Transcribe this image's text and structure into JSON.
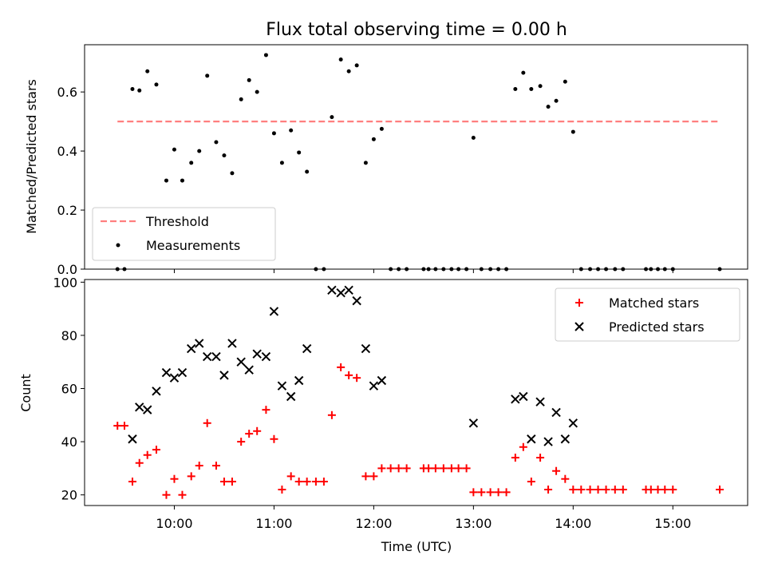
{
  "chart_data": [
    {
      "type": "scatter",
      "title": "Flux total observing time = 0.00 h",
      "xlabel": "",
      "ylabel": "Matched/Predicted stars",
      "xlim": [
        9.1,
        15.75
      ],
      "ylim": [
        0,
        0.76
      ],
      "yticks": [
        0.0,
        0.2,
        0.4,
        0.6
      ],
      "ytick_labels": [
        "0.0",
        "0.2",
        "0.4",
        "0.6"
      ],
      "legend_position": "lower-left",
      "threshold": {
        "name": "Threshold",
        "color": "#ff7f7f",
        "value": 0.5,
        "x_range": [
          9.43,
          15.47
        ]
      },
      "series": [
        {
          "name": "Measurements",
          "color": "#000000",
          "marker": "dot",
          "x": [
            9.43,
            9.5,
            9.58,
            9.65,
            9.73,
            9.82,
            9.92,
            10.0,
            10.08,
            10.17,
            10.25,
            10.33,
            10.42,
            10.5,
            10.58,
            10.67,
            10.75,
            10.83,
            10.92,
            11.0,
            11.08,
            11.17,
            11.25,
            11.33,
            11.42,
            11.5,
            11.58,
            11.67,
            11.75,
            11.83,
            11.92,
            12.0,
            12.08,
            12.17,
            12.25,
            12.33,
            12.5,
            12.55,
            12.62,
            12.7,
            12.78,
            12.85,
            12.93,
            13.0,
            13.08,
            13.17,
            13.25,
            13.33,
            13.42,
            13.5,
            13.58,
            13.67,
            13.75,
            13.83,
            13.92,
            14.0,
            14.08,
            14.17,
            14.25,
            14.33,
            14.42,
            14.5,
            14.73,
            14.78,
            14.85,
            14.92,
            15.0,
            15.47
          ],
          "y": [
            0.0,
            0.0,
            0.61,
            0.605,
            0.67,
            0.625,
            0.3,
            0.405,
            0.3,
            0.36,
            0.4,
            0.655,
            0.43,
            0.385,
            0.325,
            0.575,
            0.64,
            0.6,
            0.725,
            0.46,
            0.36,
            0.47,
            0.395,
            0.33,
            0.0,
            0.0,
            0.515,
            0.71,
            0.67,
            0.69,
            0.36,
            0.44,
            0.475,
            0.0,
            0.0,
            0.0,
            0.0,
            0.0,
            0.0,
            0.0,
            0.0,
            0.0,
            0.0,
            0.445,
            0.0,
            0.0,
            0.0,
            0.0,
            0.61,
            0.665,
            0.61,
            0.62,
            0.55,
            0.57,
            0.635,
            0.465,
            0.0,
            0.0,
            0.0,
            0.0,
            0.0,
            0.0,
            0.0,
            0.0,
            0.0,
            0.0,
            0.0,
            0.0
          ]
        }
      ]
    },
    {
      "type": "scatter",
      "title": "",
      "xlabel": "Time (UTC)",
      "ylabel": "Count",
      "xlim": [
        9.1,
        15.75
      ],
      "ylim": [
        16,
        101
      ],
      "xticks": [
        10,
        11,
        12,
        13,
        14,
        15
      ],
      "xtick_labels": [
        "10:00",
        "11:00",
        "12:00",
        "13:00",
        "14:00",
        "15:00"
      ],
      "yticks": [
        20,
        40,
        60,
        80,
        100
      ],
      "ytick_labels": [
        "20",
        "40",
        "60",
        "80",
        "100"
      ],
      "legend_position": "upper-right",
      "series": [
        {
          "name": "Matched stars",
          "color": "#ff0000",
          "marker": "plus",
          "x": [
            9.43,
            9.5,
            9.58,
            9.65,
            9.73,
            9.82,
            9.92,
            10.0,
            10.08,
            10.17,
            10.25,
            10.33,
            10.42,
            10.5,
            10.58,
            10.67,
            10.75,
            10.83,
            10.92,
            11.0,
            11.08,
            11.17,
            11.25,
            11.33,
            11.42,
            11.5,
            11.58,
            11.67,
            11.75,
            11.83,
            11.92,
            12.0,
            12.08,
            12.17,
            12.25,
            12.33,
            12.5,
            12.55,
            12.62,
            12.7,
            12.78,
            12.85,
            12.93,
            13.0,
            13.08,
            13.17,
            13.25,
            13.33,
            13.42,
            13.5,
            13.58,
            13.67,
            13.75,
            13.83,
            13.92,
            14.0,
            14.08,
            14.17,
            14.25,
            14.33,
            14.42,
            14.5,
            14.73,
            14.78,
            14.85,
            14.92,
            15.0,
            15.47
          ],
          "y": [
            46,
            46,
            25,
            32,
            35,
            37,
            20,
            26,
            20,
            27,
            31,
            47,
            31,
            25,
            25,
            40,
            43,
            44,
            52,
            41,
            22,
            27,
            25,
            25,
            25,
            25,
            50,
            68,
            65,
            64,
            27,
            27,
            30,
            30,
            30,
            30,
            30,
            30,
            30,
            30,
            30,
            30,
            30,
            21,
            21,
            21,
            21,
            21,
            34,
            38,
            25,
            34,
            22,
            29,
            26,
            22,
            22,
            22,
            22,
            22,
            22,
            22,
            22,
            22,
            22,
            22,
            22,
            22
          ]
        },
        {
          "name": "Predicted stars",
          "color": "#000000",
          "marker": "x",
          "x": [
            9.58,
            9.65,
            9.73,
            9.82,
            9.92,
            10.0,
            10.08,
            10.17,
            10.25,
            10.33,
            10.42,
            10.5,
            10.58,
            10.67,
            10.75,
            10.83,
            10.92,
            11.0,
            11.08,
            11.17,
            11.25,
            11.33,
            11.58,
            11.67,
            11.75,
            11.83,
            11.92,
            12.0,
            12.08,
            13.0,
            13.42,
            13.5,
            13.58,
            13.67,
            13.75,
            13.83,
            13.92,
            14.0
          ],
          "y": [
            41,
            53,
            52,
            59,
            66,
            64,
            66,
            75,
            77,
            72,
            72,
            65,
            77,
            70,
            67,
            73,
            72,
            89,
            61,
            57,
            63,
            75,
            97,
            96,
            97,
            93,
            75,
            61,
            63,
            47,
            56,
            57,
            41,
            55,
            40,
            51,
            41,
            47
          ]
        }
      ]
    }
  ]
}
